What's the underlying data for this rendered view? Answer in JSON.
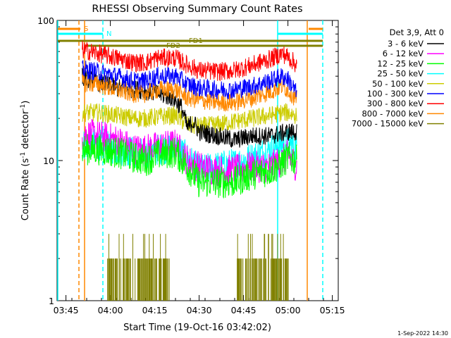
{
  "chart_data": {
    "type": "line",
    "title": "RHESSI Observing Summary Count Rates",
    "xlabel": "Start Time (19-Oct-16 03:42:02)",
    "ylabel_main": "Count Rate (s",
    "ylabel_sup1": "-1",
    "ylabel_mid": " detector",
    "ylabel_sup2": "-1",
    "ylabel_end": ")",
    "yscale": "log",
    "xlim_minutes": [
      0,
      95
    ],
    "ylim": [
      1,
      100
    ],
    "x_ticks": [
      {
        "minute": 3,
        "label": "03:45"
      },
      {
        "minute": 18,
        "label": "04:00"
      },
      {
        "minute": 33,
        "label": "04:15"
      },
      {
        "minute": 48,
        "label": "04:30"
      },
      {
        "minute": 63,
        "label": "04:45"
      },
      {
        "minute": 78,
        "label": "05:00"
      },
      {
        "minute": 93,
        "label": "05:15"
      }
    ],
    "y_ticks": [
      {
        "value": 1,
        "label": "1"
      },
      {
        "value": 10,
        "label": "10"
      },
      {
        "value": 100,
        "label": "100"
      }
    ],
    "legend_header": "Det 3,9, Att 0",
    "legend_position": "right",
    "series": [
      {
        "name": "3 - 6 keV",
        "color": "#000000",
        "profile": [
          [
            8,
            40
          ],
          [
            14,
            36
          ],
          [
            20,
            33
          ],
          [
            28,
            32
          ],
          [
            34,
            30
          ],
          [
            39,
            28
          ],
          [
            42,
            24
          ],
          [
            44,
            17
          ],
          [
            46,
            19
          ],
          [
            48,
            16
          ],
          [
            54,
            15
          ],
          [
            60,
            14
          ],
          [
            66,
            15
          ],
          [
            72,
            15
          ],
          [
            78,
            16
          ],
          [
            81,
            16
          ]
        ]
      },
      {
        "name": "6 - 12 keV",
        "color": "#ff00ff",
        "profile": [
          [
            8,
            15.5
          ],
          [
            14,
            15
          ],
          [
            20,
            14
          ],
          [
            26,
            12
          ],
          [
            30,
            12
          ],
          [
            34,
            12.5
          ],
          [
            40,
            13
          ],
          [
            44,
            10
          ],
          [
            48,
            9
          ],
          [
            54,
            8.5
          ],
          [
            60,
            8.5
          ],
          [
            66,
            9
          ],
          [
            72,
            9
          ],
          [
            76,
            10
          ],
          [
            78,
            11
          ],
          [
            81,
            9
          ]
        ]
      },
      {
        "name": "12 - 25 keV",
        "color": "#00ff00",
        "profile": [
          [
            8,
            12
          ],
          [
            14,
            12
          ],
          [
            20,
            11.5
          ],
          [
            26,
            10.5
          ],
          [
            30,
            10
          ],
          [
            34,
            11
          ],
          [
            40,
            11.5
          ],
          [
            44,
            9
          ],
          [
            48,
            7
          ],
          [
            54,
            7
          ],
          [
            60,
            7
          ],
          [
            66,
            8
          ],
          [
            72,
            8.5
          ],
          [
            76,
            9.5
          ],
          [
            78,
            10.5
          ],
          [
            81,
            10
          ]
        ]
      },
      {
        "name": "25 - 50 keV",
        "color": "#00ffff",
        "profile": [
          [
            8,
            13
          ],
          [
            14,
            13
          ],
          [
            20,
            12
          ],
          [
            26,
            11.5
          ],
          [
            30,
            11
          ],
          [
            34,
            12
          ],
          [
            40,
            12.5
          ],
          [
            44,
            10.5
          ],
          [
            48,
            8.5
          ],
          [
            54,
            9
          ],
          [
            60,
            9.5
          ],
          [
            66,
            10.5
          ],
          [
            72,
            12
          ],
          [
            76,
            13
          ],
          [
            78,
            13.5
          ],
          [
            81,
            12
          ]
        ]
      },
      {
        "name": "50 - 100 keV",
        "color": "#cccc00",
        "profile": [
          [
            8,
            22
          ],
          [
            14,
            22
          ],
          [
            20,
            21
          ],
          [
            26,
            20
          ],
          [
            30,
            20
          ],
          [
            34,
            20.5
          ],
          [
            40,
            21
          ],
          [
            44,
            18
          ],
          [
            48,
            17.5
          ],
          [
            54,
            18
          ],
          [
            60,
            19
          ],
          [
            66,
            20
          ],
          [
            72,
            21
          ],
          [
            76,
            22
          ],
          [
            78,
            22
          ],
          [
            81,
            21
          ]
        ]
      },
      {
        "name": "100 - 300 keV",
        "color": "#0000ff",
        "profile": [
          [
            8,
            45
          ],
          [
            14,
            43
          ],
          [
            20,
            40
          ],
          [
            26,
            37
          ],
          [
            30,
            37
          ],
          [
            34,
            40
          ],
          [
            40,
            40
          ],
          [
            44,
            35
          ],
          [
            48,
            33
          ],
          [
            54,
            32
          ],
          [
            60,
            32
          ],
          [
            66,
            34
          ],
          [
            72,
            37
          ],
          [
            76,
            40
          ],
          [
            78,
            38
          ],
          [
            81,
            30
          ]
        ]
      },
      {
        "name": "300 - 800 keV",
        "color": "#ff0000",
        "profile": [
          [
            8,
            62
          ],
          [
            14,
            58
          ],
          [
            20,
            54
          ],
          [
            26,
            50
          ],
          [
            30,
            50
          ],
          [
            34,
            54
          ],
          [
            40,
            54
          ],
          [
            44,
            48
          ],
          [
            48,
            44
          ],
          [
            54,
            43
          ],
          [
            60,
            44
          ],
          [
            66,
            48
          ],
          [
            72,
            53
          ],
          [
            76,
            58
          ],
          [
            78,
            55
          ],
          [
            81,
            48
          ]
        ]
      },
      {
        "name": "800 - 7000 keV",
        "color": "#ff8800",
        "profile": [
          [
            8,
            36
          ],
          [
            14,
            35
          ],
          [
            20,
            32
          ],
          [
            26,
            30
          ],
          [
            30,
            30
          ],
          [
            34,
            32
          ],
          [
            40,
            32
          ],
          [
            44,
            28
          ],
          [
            48,
            27
          ],
          [
            54,
            26
          ],
          [
            60,
            26
          ],
          [
            66,
            28
          ],
          [
            72,
            31
          ],
          [
            76,
            34
          ],
          [
            78,
            32
          ],
          [
            81,
            27
          ]
        ]
      },
      {
        "name": "7000 - 15000 keV",
        "color": "#808000",
        "profile": [
          [
            8,
            1
          ],
          [
            81,
            1
          ]
        ]
      }
    ],
    "annotations": [
      {
        "label": "S",
        "color": "#ff8800"
      },
      {
        "label": "N",
        "color": "#00ffff"
      },
      {
        "label": "FD1",
        "color": "#808000"
      },
      {
        "label": "FD2",
        "color": "#808000"
      }
    ],
    "footer_date": "1-Sep-2022 14:30",
    "axis_color": "#000000",
    "background": "#ffffff"
  }
}
